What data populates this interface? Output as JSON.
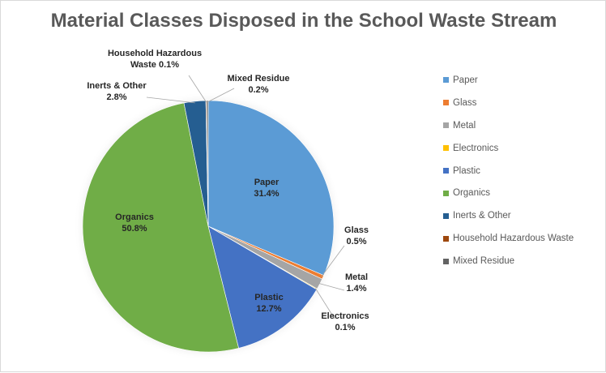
{
  "chart_data": {
    "type": "pie",
    "title": "Material Classes Disposed in the School Waste Stream",
    "legend_position": "right",
    "start_angle_deg": 0,
    "direction": "clockwise",
    "slices": [
      {
        "name": "Paper",
        "value": 31.4,
        "color": "#5b9bd5",
        "label": [
          "Paper",
          "31.4%"
        ]
      },
      {
        "name": "Glass",
        "value": 0.5,
        "color": "#ed7d31",
        "label": [
          "Glass",
          "0.5%"
        ]
      },
      {
        "name": "Metal",
        "value": 1.4,
        "color": "#a5a5a5",
        "label": [
          "Metal",
          "1.4%"
        ]
      },
      {
        "name": "Electronics",
        "value": 0.1,
        "color": "#ffc000",
        "label": [
          "Electronics",
          "0.1%"
        ]
      },
      {
        "name": "Plastic",
        "value": 12.7,
        "color": "#4472c4",
        "label": [
          "Plastic",
          "12.7%"
        ]
      },
      {
        "name": "Organics",
        "value": 50.8,
        "color": "#70ad47",
        "label": [
          "Organics",
          "50.8%"
        ]
      },
      {
        "name": "Inerts & Other",
        "value": 2.8,
        "color": "#255e91",
        "label": [
          "Inerts & Other",
          "2.8%"
        ]
      },
      {
        "name": "Household Hazardous Waste",
        "value": 0.1,
        "color": "#9e480e",
        "label": [
          "Household Hazardous",
          "Waste 0.1%"
        ]
      },
      {
        "name": "Mixed Residue",
        "value": 0.2,
        "color": "#636363",
        "label": [
          "Mixed Residue",
          "0.2%"
        ]
      }
    ]
  }
}
